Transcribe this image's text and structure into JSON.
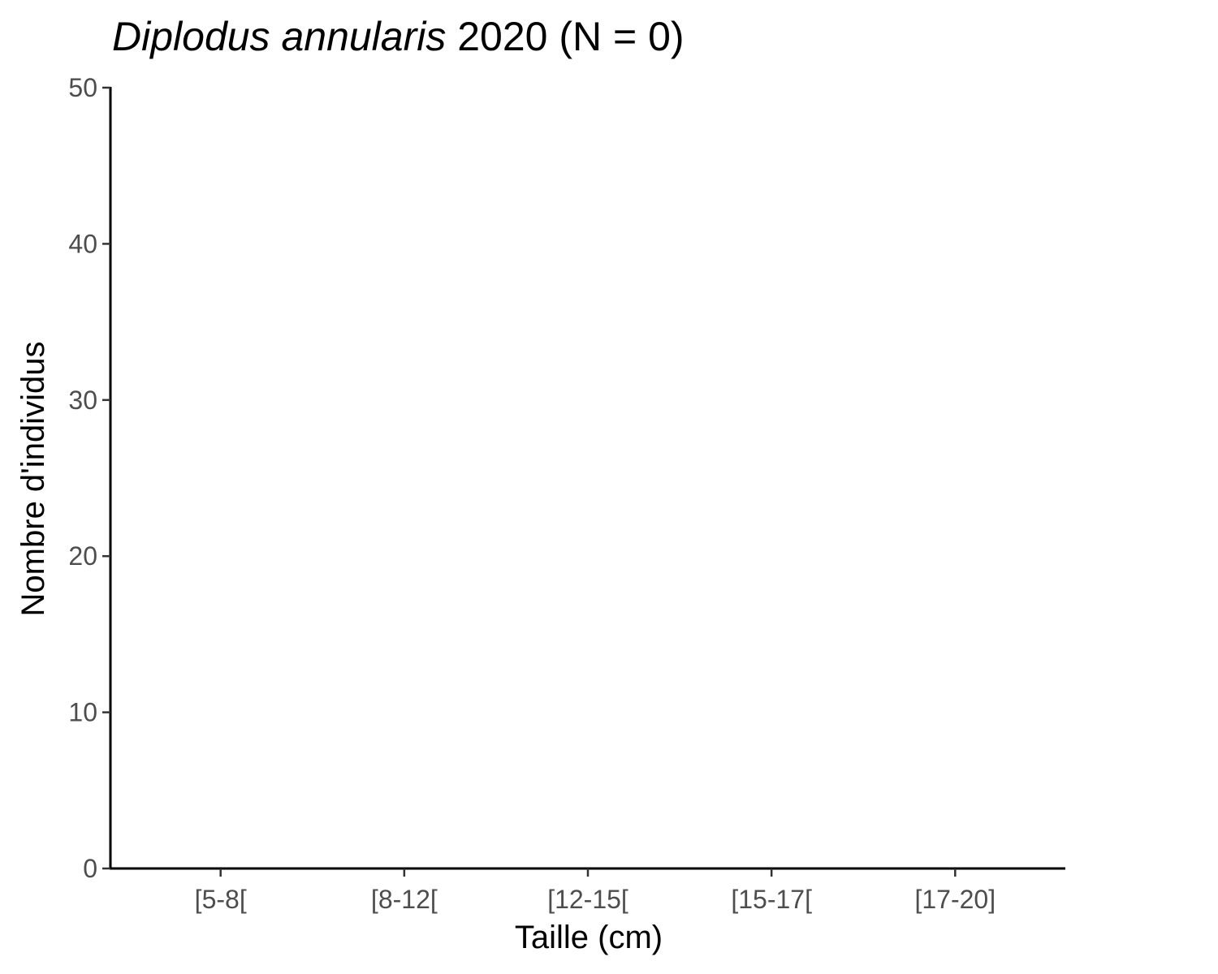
{
  "chart_data": {
    "type": "bar",
    "title": {
      "species": "Diplodus annularis",
      "rest": " 2020 (N = 0)"
    },
    "xlabel": "Taille (cm)",
    "ylabel": "Nombre d'individus",
    "categories": [
      "[5-8[",
      "[8-12[",
      "[12-15[",
      "[15-17[",
      "[17-20]"
    ],
    "values": [
      0,
      0,
      0,
      0,
      0
    ],
    "ylim": [
      0,
      50
    ],
    "yticks": [
      "0",
      "10",
      "20",
      "30",
      "40",
      "50"
    ],
    "grid": false,
    "legend": "none",
    "colors": {
      "axis": "#000000",
      "tick_label": "#4d4d4d",
      "title": "#000000"
    }
  }
}
